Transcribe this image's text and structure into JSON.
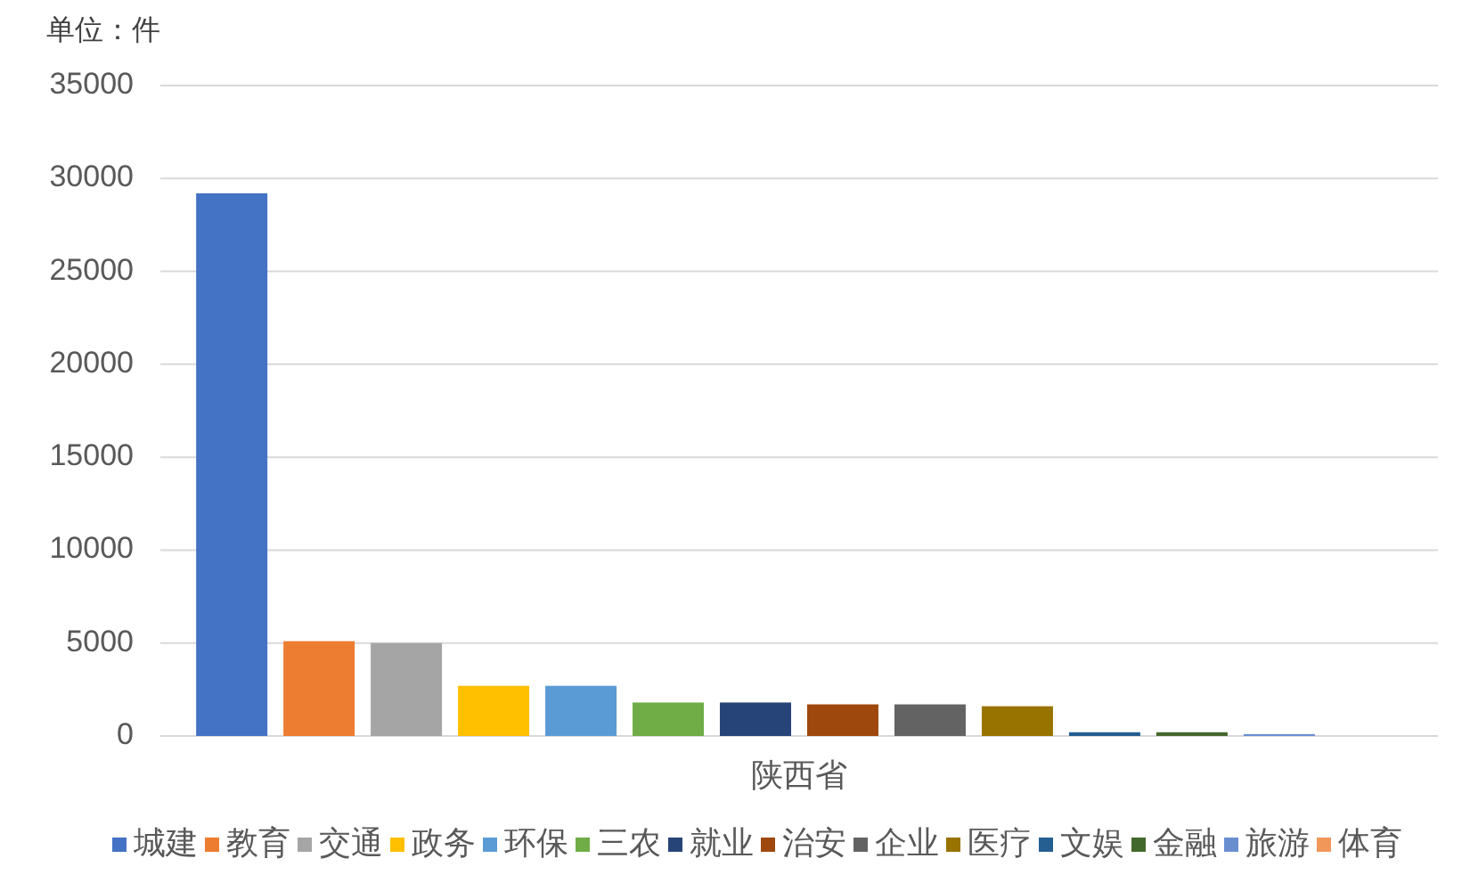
{
  "chart_data": {
    "type": "bar",
    "ylabel": "单位：件",
    "categories": [
      "陕西省"
    ],
    "series": [
      {
        "name": "城建",
        "color": "#4472c4",
        "values": [
          29200
        ]
      },
      {
        "name": "教育",
        "color": "#ed7d31",
        "values": [
          5100
        ]
      },
      {
        "name": "交通",
        "color": "#a5a5a5",
        "values": [
          5000
        ]
      },
      {
        "name": "政务",
        "color": "#ffc000",
        "values": [
          2700
        ]
      },
      {
        "name": "环保",
        "color": "#5b9bd5",
        "values": [
          2700
        ]
      },
      {
        "name": "三农",
        "color": "#70ad47",
        "values": [
          1800
        ]
      },
      {
        "name": "就业",
        "color": "#264478",
        "values": [
          1800
        ]
      },
      {
        "name": "治安",
        "color": "#9e480e",
        "values": [
          1700
        ]
      },
      {
        "name": "企业",
        "color": "#636363",
        "values": [
          1700
        ]
      },
      {
        "name": "医疗",
        "color": "#997300",
        "values": [
          1600
        ]
      },
      {
        "name": "文娱",
        "color": "#255e91",
        "values": [
          200
        ]
      },
      {
        "name": "金融",
        "color": "#43682b",
        "values": [
          200
        ]
      },
      {
        "name": "旅游",
        "color": "#698ed0",
        "values": [
          100
        ]
      },
      {
        "name": "体育",
        "color": "#f1975a",
        "values": [
          0
        ]
      }
    ],
    "ylim": [
      0,
      35000
    ],
    "yticks": [
      0,
      5000,
      10000,
      15000,
      20000,
      25000,
      30000,
      35000
    ],
    "grid": "y",
    "legend": "bottom"
  }
}
